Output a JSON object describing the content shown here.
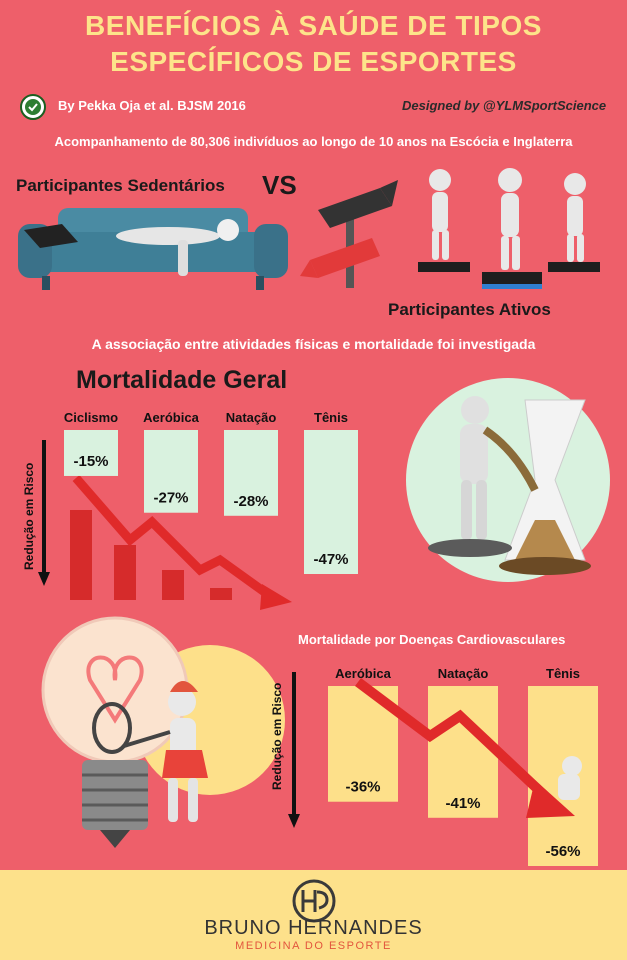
{
  "header": {
    "title_line1": "BENEFÍCIOS À SAÚDE DE TIPOS",
    "title_line2": "ESPECÍFICOS DE ESPORTES",
    "source": "By Pekka Oja et al. BJSM 2016",
    "designer": "Designed by @YLMSportScience"
  },
  "intro": {
    "study": "Acompanhamento de 80,306 indivíduos ao longo de 10 anos na Escócia e Inglaterra",
    "sedentary": "Participantes Sedentários",
    "vs": "VS",
    "active": "Participantes Ativos",
    "association": "A associação entre atividades físicas e mortalidade foi investigada"
  },
  "colors": {
    "background": "#ee5f6a",
    "title": "#fde48a",
    "bar_green": "#d9f2df",
    "bar_yellow": "#fde08a",
    "footer": "#fde18b",
    "arrow_red": "#e02a2a"
  },
  "chart_data": [
    {
      "type": "bar",
      "title": "Mortalidade Geral",
      "ylabel": "Redução em Risco",
      "categories": [
        "Ciclismo",
        "Aeróbica",
        "Natação",
        "Tênis"
      ],
      "values": [
        -15,
        -27,
        -28,
        -47
      ],
      "value_labels": [
        "-15%",
        "-27%",
        "-28%",
        "-47%"
      ]
    },
    {
      "type": "bar",
      "title": "Mortalidade por Doenças Cardiovasculares",
      "ylabel": "Redução em Risco",
      "categories": [
        "Aeróbica",
        "Natação",
        "Tênis"
      ],
      "values": [
        -36,
        -41,
        -56
      ],
      "value_labels": [
        "-36%",
        "-41%",
        "-56%"
      ]
    }
  ],
  "footer": {
    "brand": "BRUNO HERNANDES",
    "tagline": "MEDICINA DO ESPORTE"
  }
}
